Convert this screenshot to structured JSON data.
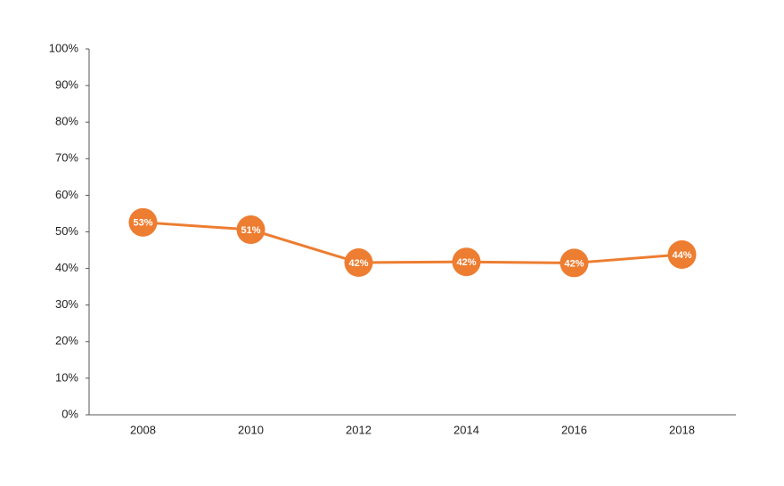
{
  "chart_data": {
    "type": "line",
    "categories": [
      "2008",
      "2010",
      "2012",
      "2014",
      "2016",
      "2018"
    ],
    "series": [
      {
        "color": "#ed7d31",
        "values": [
          52.6,
          50.6,
          41.6,
          41.8,
          41.5,
          43.8
        ],
        "value_labels": [
          "53%",
          "51%",
          "42%",
          "42%",
          "42%",
          "44%"
        ]
      }
    ],
    "ylim": [
      0,
      100
    ],
    "yticks": [
      {
        "value": 0,
        "label": "0%"
      },
      {
        "value": 10,
        "label": "10%"
      },
      {
        "value": 20,
        "label": "20%"
      },
      {
        "value": 30,
        "label": "30%"
      },
      {
        "value": 40,
        "label": "40%"
      },
      {
        "value": 50,
        "label": "50%"
      },
      {
        "value": 60,
        "label": "60%"
      },
      {
        "value": 70,
        "label": "70%"
      },
      {
        "value": 80,
        "label": "80%"
      },
      {
        "value": 90,
        "label": "90%"
      },
      {
        "value": 100,
        "label": "100%"
      }
    ],
    "grid": false
  }
}
